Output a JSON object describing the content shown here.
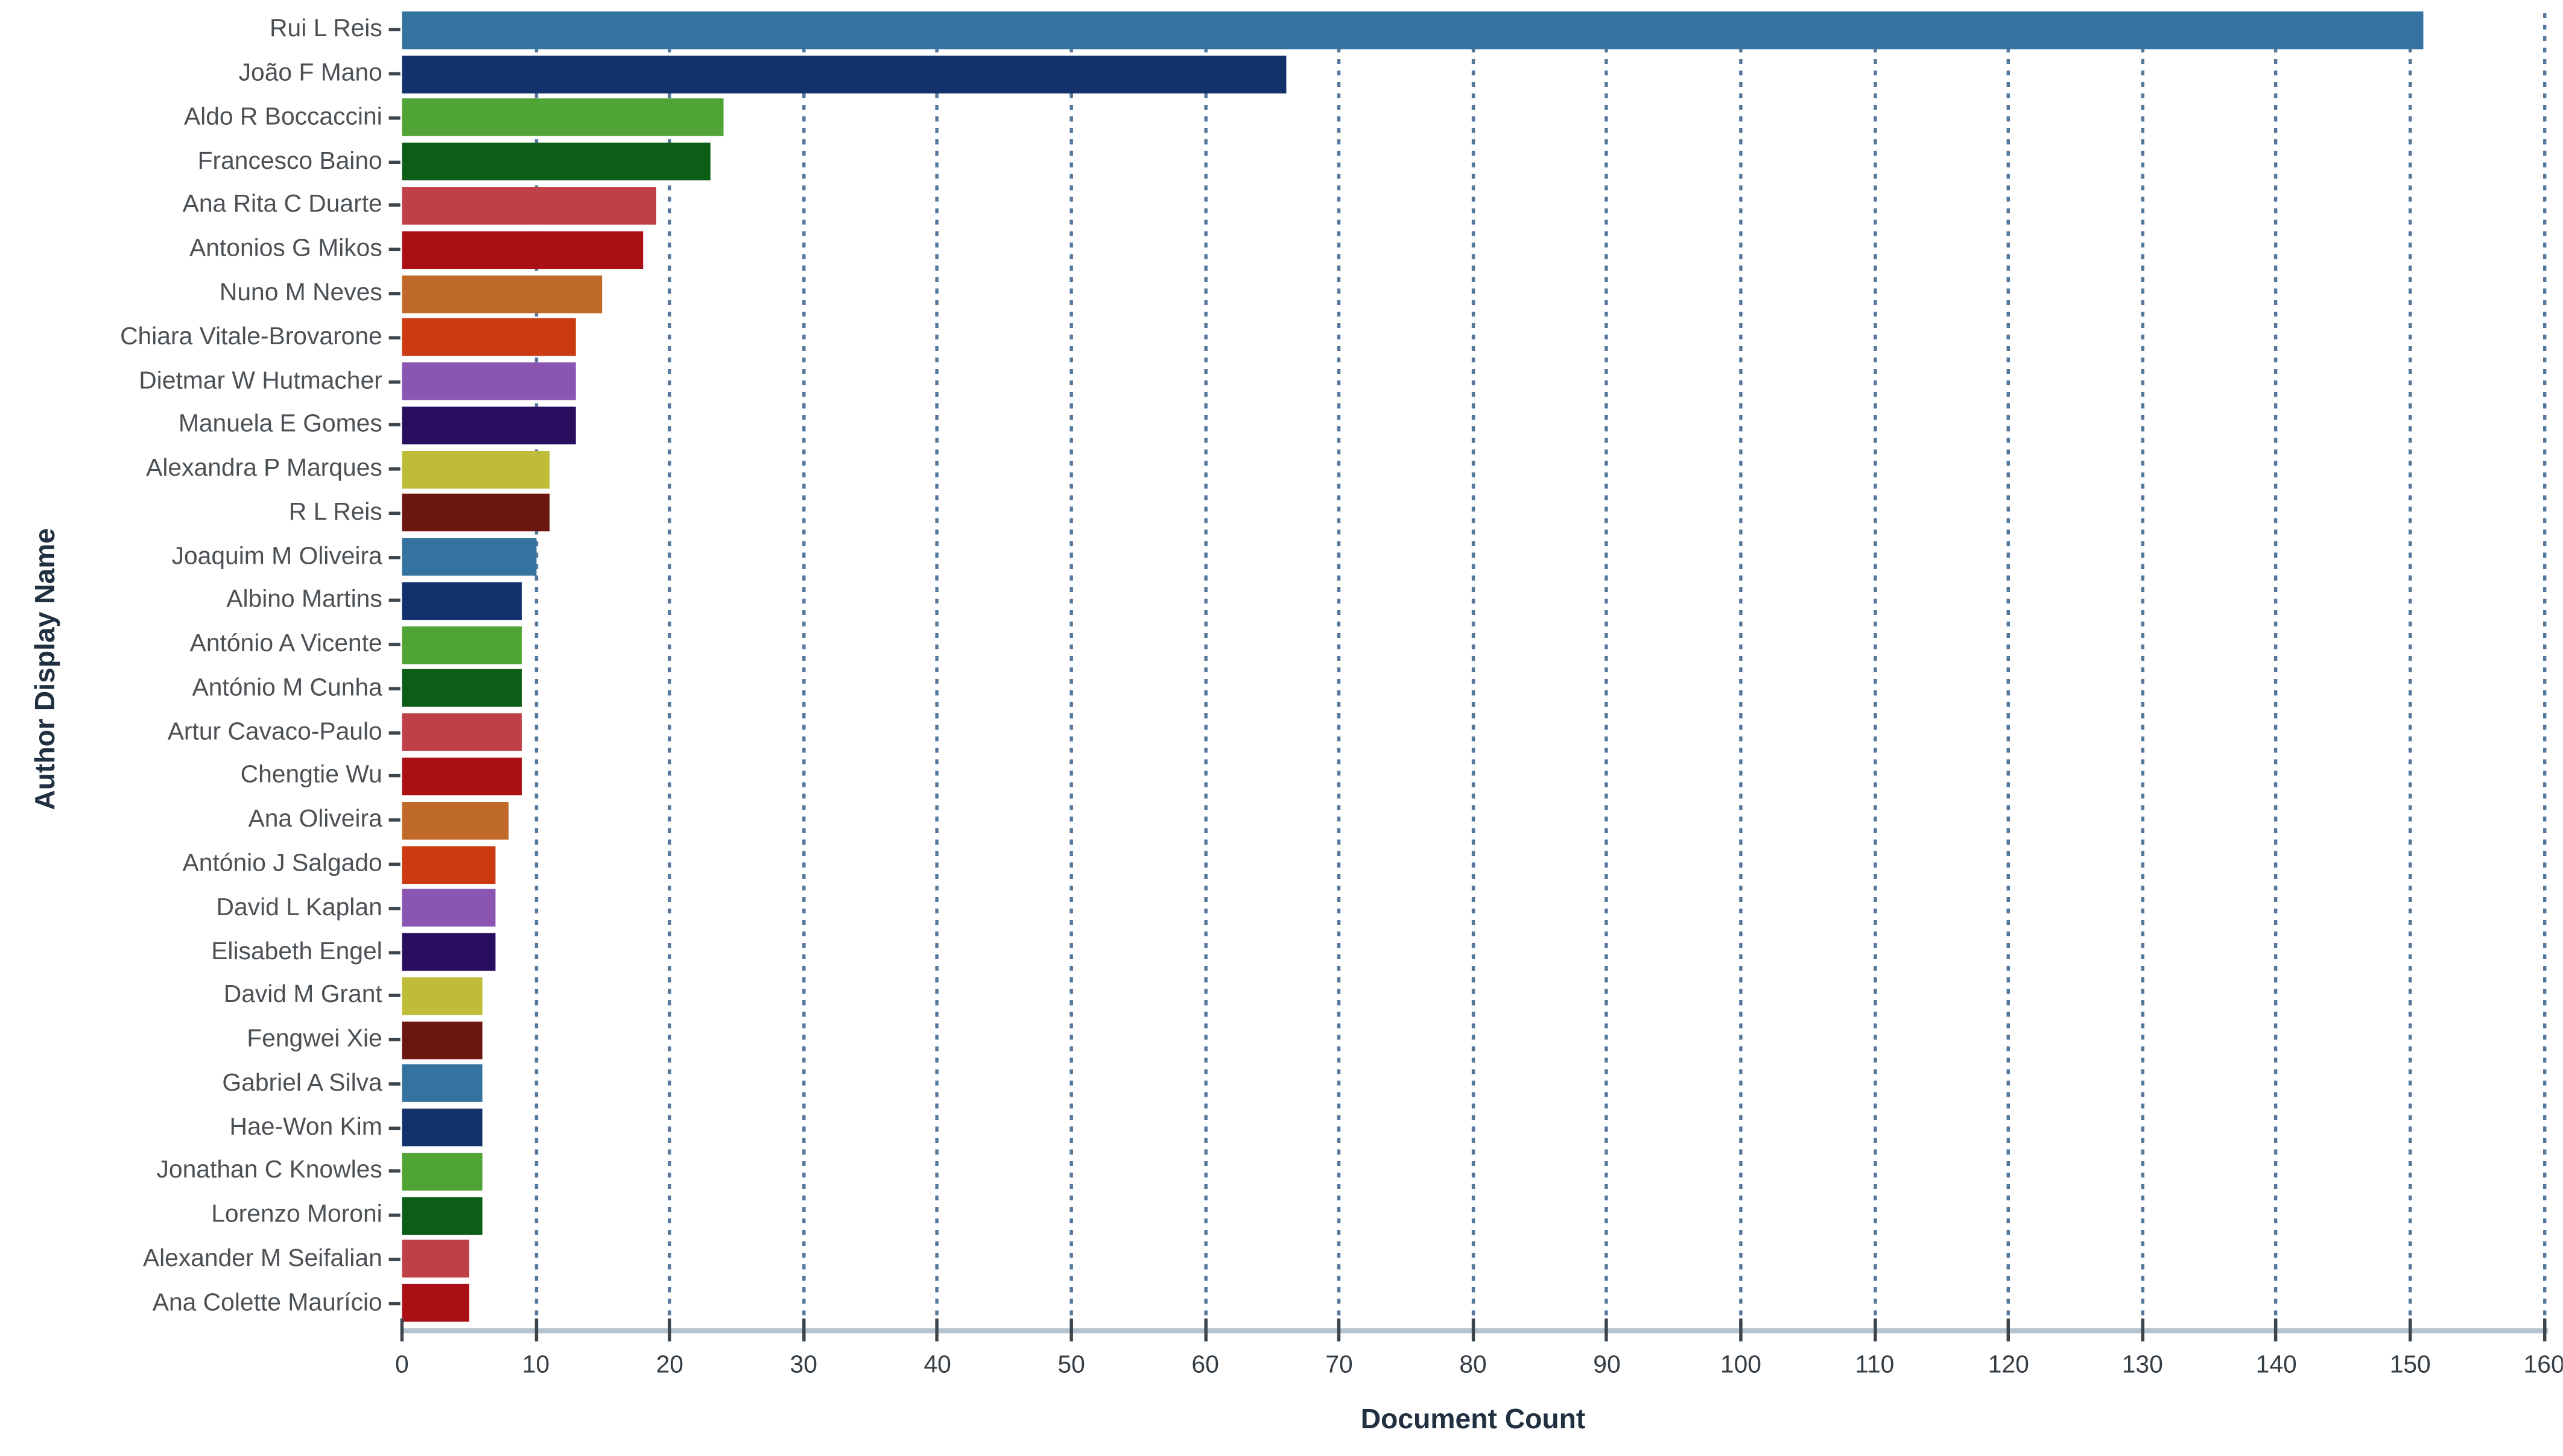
{
  "chart_data": {
    "type": "bar",
    "orientation": "horizontal",
    "title": "",
    "xlabel": "Document Count",
    "ylabel": "Author Display Name",
    "xlim": [
      0,
      160
    ],
    "xticks": [
      0,
      10,
      20,
      30,
      40,
      50,
      60,
      70,
      80,
      90,
      100,
      110,
      120,
      130,
      140,
      150,
      160
    ],
    "grid": {
      "axis": "x",
      "style": "dashed",
      "behind_bars": true
    },
    "legend": "none",
    "categories": [
      "Rui L Reis",
      "João F Mano",
      "Aldo R Boccaccini",
      "Francesco Baino",
      "Ana Rita C Duarte",
      "Antonios G Mikos",
      "Nuno M Neves",
      "Chiara Vitale-Brovarone",
      "Dietmar W Hutmacher",
      "Manuela E Gomes",
      "Alexandra P Marques",
      "R L Reis",
      "Joaquim M Oliveira",
      "Albino Martins",
      "António A Vicente",
      "António M Cunha",
      "Artur Cavaco-Paulo",
      "Chengtie Wu",
      "Ana Oliveira",
      "António J Salgado",
      "David L Kaplan",
      "Elisabeth Engel",
      "David M Grant",
      "Fengwei Xie",
      "Gabriel A Silva",
      "Hae-Won Kim",
      "Jonathan C Knowles",
      "Lorenzo Moroni",
      "Alexander M Seifalian",
      "Ana Colette Maurício"
    ],
    "values": [
      151,
      66,
      24,
      23,
      19,
      18,
      15,
      13,
      13,
      13,
      11,
      11,
      10,
      9,
      9,
      9,
      9,
      9,
      8,
      7,
      7,
      7,
      6,
      6,
      6,
      6,
      6,
      6,
      5,
      5
    ],
    "bar_colors": [
      "#34739f",
      "#13316b",
      "#50a436",
      "#0c5e16",
      "#bf4046",
      "#a90f14",
      "#c06a29",
      "#cb3a10",
      "#8a56b2",
      "#290e5f",
      "#bebc39",
      "#6b170e",
      "#34739f",
      "#13316b",
      "#50a436",
      "#0c5e16",
      "#bf4046",
      "#a90f14",
      "#c06a29",
      "#cb3a10",
      "#8a56b2",
      "#290e5f",
      "#bebc39",
      "#6b170e",
      "#34739f",
      "#13316b",
      "#50a436",
      "#0c5e16",
      "#bf4046",
      "#a90f14"
    ]
  },
  "colors": {
    "background": "#ffffff",
    "axis_line": "#b3c2d1",
    "tick_mark": "#3c444c",
    "tick_label": "#343c44",
    "category_label": "#4b5055",
    "axis_title": "#203040",
    "gridline": "#54779c"
  }
}
